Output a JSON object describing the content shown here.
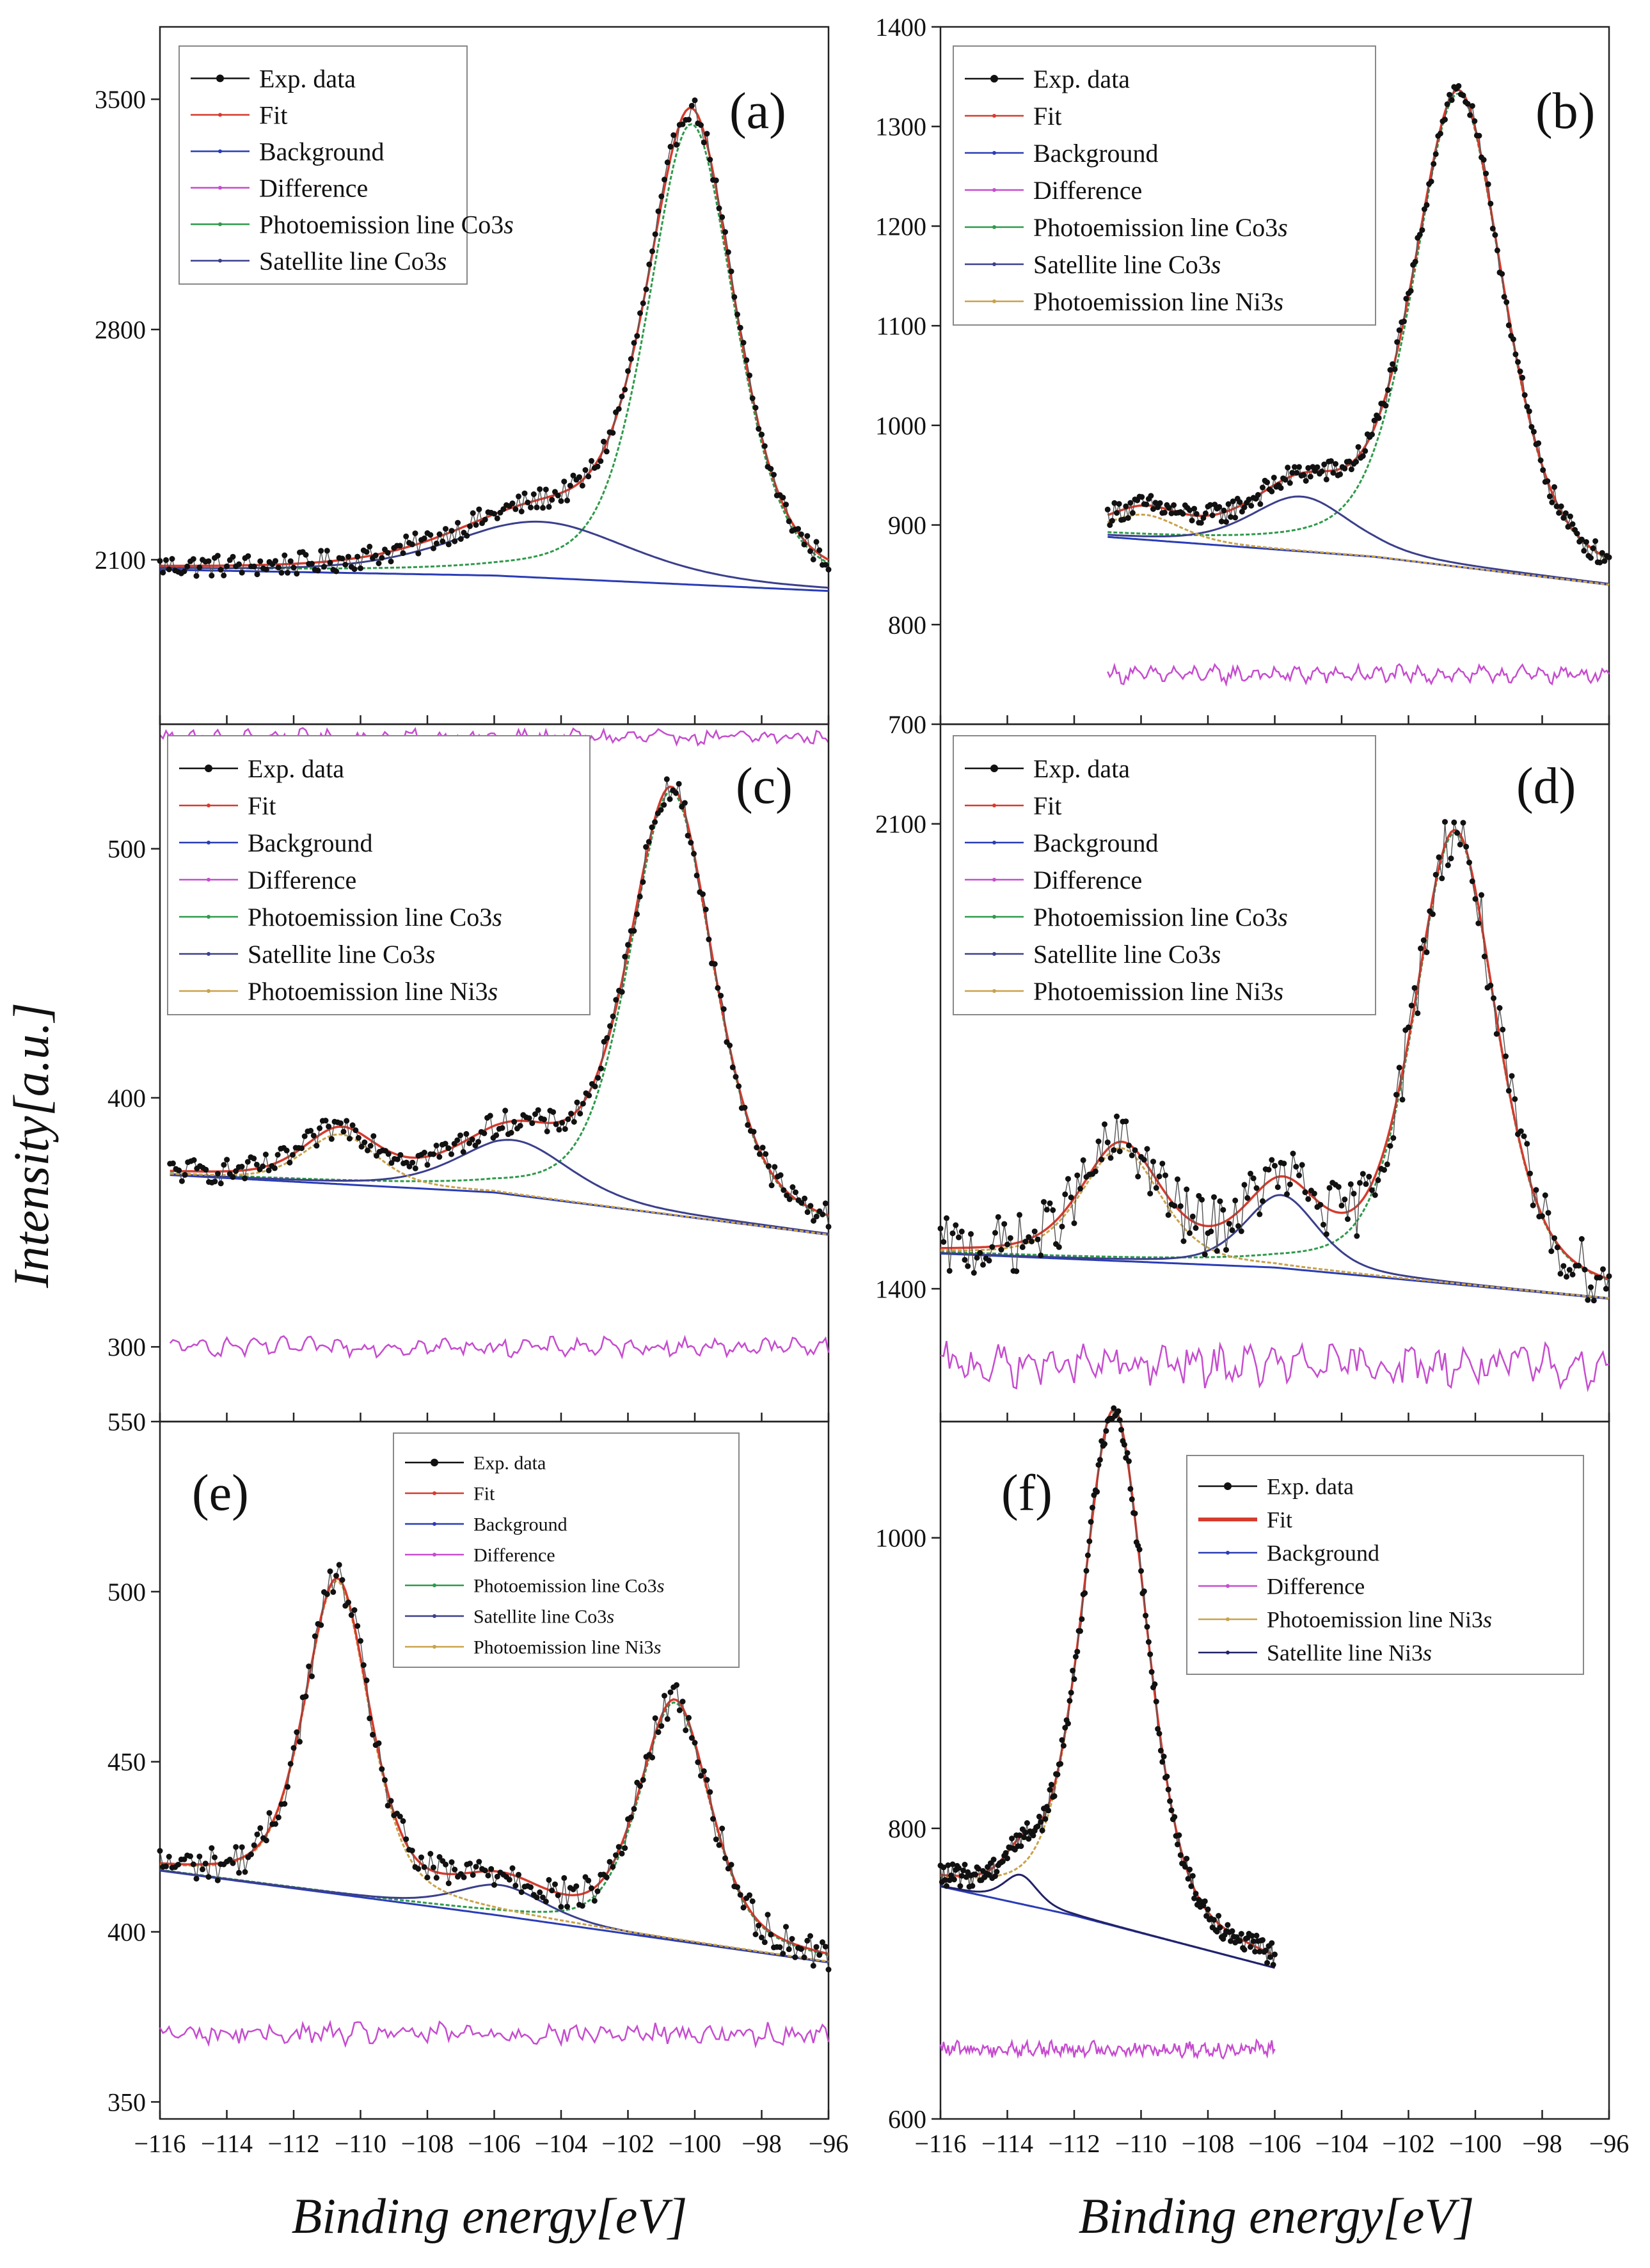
{
  "figure": {
    "ylabel": "Intensity[a.u.]",
    "xlabel": "Binding energy[eV]",
    "x_ticks": [
      -116,
      -114,
      -112,
      -110,
      -108,
      -106,
      -104,
      -102,
      -100,
      -98,
      -96
    ],
    "x_tick_labels": [
      "−116",
      "−114",
      "−112",
      "−110",
      "−108",
      "−106",
      "−104",
      "−102",
      "−100",
      "−98",
      "−96"
    ],
    "xlim": [
      -116,
      -96
    ]
  },
  "legend_names": {
    "exp": "Exp. data",
    "fit": "Fit",
    "bg": "Background",
    "diff": "Difference",
    "co": "Photoemission line Co3",
    "sat_co": "Satellite line  Co3",
    "ni": "Photoemission line Ni3",
    "sat_ni": "Satellite line  Ni3",
    "s": "s"
  },
  "colors": {
    "exp": "#111111",
    "fit": "#d63b2e",
    "bg": "#2a3cb5",
    "diff": "#c64ccf",
    "co": "#2e9a4a",
    "sat_co": "#3b3f8c",
    "ni": "#c9a24a",
    "sat_ni": "#22226a"
  },
  "chart_data": [
    {
      "panel": "(a)",
      "type": "line",
      "ylim": [
        1600,
        3720
      ],
      "yticks": [
        2100,
        2800,
        3500
      ],
      "ytick_labels": [
        "2100",
        "2800",
        "3500"
      ],
      "legend": [
        "exp",
        "fit",
        "bg",
        "diff",
        "co",
        "sat_co"
      ],
      "x_range": [
        -116,
        -96
      ],
      "bg_curve": [
        [
          -116,
          2070
        ],
        [
          -106,
          2052
        ],
        [
          -96,
          2005
        ]
      ],
      "components": [
        {
          "key": "co",
          "center": -100.1,
          "amp": 1400,
          "width": 1.55
        },
        {
          "key": "sat_co",
          "center": -104.6,
          "amp": 170,
          "width": 3.2
        }
      ],
      "diff_offset": 1560,
      "diff_amp": 28,
      "noise": 35
    },
    {
      "panel": "(b)",
      "type": "line",
      "ylim": [
        700,
        1400
      ],
      "yticks": [
        700,
        800,
        900,
        1000,
        1100,
        1200,
        1300,
        1400
      ],
      "ytick_labels": [
        "700",
        "800",
        "900",
        "1000",
        "1100",
        "1200",
        "1300",
        "1400"
      ],
      "legend": [
        "exp",
        "fit",
        "bg",
        "diff",
        "co",
        "sat_co",
        "ni"
      ],
      "x_range": [
        -111,
        -96
      ],
      "bg_curve": [
        [
          -111,
          888
        ],
        [
          -103,
          868
        ],
        [
          -96,
          840
        ]
      ],
      "components": [
        {
          "key": "co",
          "center": -100.5,
          "amp": 475,
          "width": 1.6
        },
        {
          "key": "sat_co",
          "center": -105.2,
          "amp": 55,
          "width": 1.8
        },
        {
          "key": "ni",
          "center": -109.9,
          "amp": 25,
          "width": 1.3
        }
      ],
      "diff_offset": 750,
      "diff_amp": 12,
      "noise": 11
    },
    {
      "panel": "(c)",
      "type": "line",
      "ylim": [
        270,
        550
      ],
      "yticks": [
        300,
        400,
        500
      ],
      "ytick_labels": [
        "300",
        "400",
        "500"
      ],
      "legend": [
        "exp",
        "fit",
        "bg",
        "diff",
        "co",
        "sat_co",
        "ni"
      ],
      "x_range": [
        -115.7,
        -96
      ],
      "bg_curve": [
        [
          -115.7,
          369
        ],
        [
          -106,
          362
        ],
        [
          -96,
          345
        ]
      ],
      "components": [
        {
          "key": "co",
          "center": -100.7,
          "amp": 170,
          "width": 1.5
        },
        {
          "key": "sat_co",
          "center": -105.4,
          "amp": 22,
          "width": 2.0
        },
        {
          "key": "ni",
          "center": -110.6,
          "amp": 20,
          "width": 1.3
        }
      ],
      "diff_offset": 300,
      "diff_amp": 5,
      "noise": 5
    },
    {
      "panel": "(d)",
      "type": "line",
      "ylim": [
        1200,
        2250
      ],
      "yticks": [
        1400,
        2100
      ],
      "ytick_labels": [
        "1400",
        "2100"
      ],
      "legend": [
        "exp",
        "fit",
        "bg",
        "diff",
        "co",
        "sat_co",
        "ni"
      ],
      "x_range": [
        -116,
        -96
      ],
      "bg_curve": [
        [
          -116,
          1453
        ],
        [
          -106,
          1432
        ],
        [
          -96,
          1385
        ]
      ],
      "components": [
        {
          "key": "co",
          "center": -100.6,
          "amp": 680,
          "width": 1.45
        },
        {
          "key": "sat_co",
          "center": -105.8,
          "amp": 110,
          "width": 1.3
        },
        {
          "key": "ni",
          "center": -110.6,
          "amp": 170,
          "width": 1.4
        }
      ],
      "diff_offset": 1285,
      "diff_amp": 35,
      "noise": 45
    },
    {
      "panel": "(e)",
      "type": "line",
      "ylim": [
        345,
        550
      ],
      "yticks": [
        350,
        400,
        450,
        500,
        550
      ],
      "ytick_labels": [
        "350",
        "400",
        "450",
        "500",
        "550"
      ],
      "legend": [
        "exp",
        "fit",
        "bg",
        "diff",
        "co",
        "sat_co",
        "ni"
      ],
      "x_range": [
        -116,
        -96
      ],
      "bg_curve": [
        [
          -116,
          418
        ],
        [
          -106,
          405
        ],
        [
          -96,
          391
        ]
      ],
      "components": [
        {
          "key": "co",
          "center": -100.6,
          "amp": 70,
          "width": 1.25
        },
        {
          "key": "sat_co",
          "center": -105.8,
          "amp": 9,
          "width": 1.6
        },
        {
          "key": "ni",
          "center": -110.7,
          "amp": 92,
          "width": 1.15
        }
      ],
      "diff_offset": 370,
      "diff_amp": 3,
      "noise": 5
    },
    {
      "panel": "(f)",
      "type": "line",
      "ylim": [
        600,
        1080
      ],
      "yticks": [
        600,
        800,
        1000
      ],
      "ytick_labels": [
        "600",
        "800",
        "1000"
      ],
      "legend": [
        "exp",
        "fit",
        "bg",
        "diff",
        "ni",
        "sat_ni"
      ],
      "x_range": [
        -116,
        -106
      ],
      "bg_curve": [
        [
          -116,
          760
        ],
        [
          -112,
          740
        ],
        [
          -106,
          704
        ]
      ],
      "components": [
        {
          "key": "ni",
          "center": -110.8,
          "amp": 355,
          "width": 1.15
        },
        {
          "key": "sat_ni",
          "center": -113.6,
          "amp": 20,
          "width": 0.6
        }
      ],
      "diff_offset": 648,
      "diff_amp": 6,
      "noise": 8
    }
  ]
}
